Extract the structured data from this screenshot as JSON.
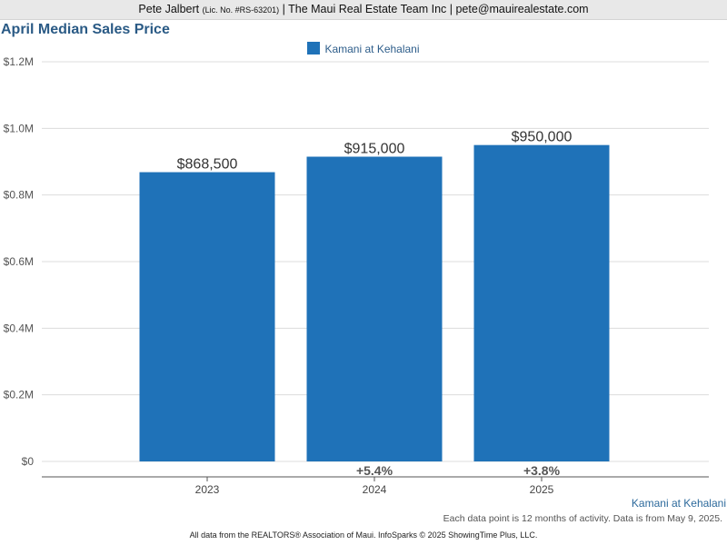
{
  "header": {
    "agent_name": "Pete Jalbert",
    "license": "(Lic. No. #RS-63201)",
    "rest": "| The Maui Real Estate Team Inc | pete@mauirealestate.com"
  },
  "chart_data": {
    "type": "bar",
    "title": "April Median Sales Price",
    "categories": [
      "2023",
      "2024",
      "2025"
    ],
    "series": [
      {
        "name": "Kamani at Kehalani",
        "color": "#1f72b8",
        "values": [
          868500,
          915000,
          950000
        ],
        "value_labels": [
          "$868,500",
          "$915,000",
          "$950,000"
        ]
      }
    ],
    "changes": [
      "",
      "+5.4%",
      "+3.8%"
    ],
    "ylim": [
      0,
      1200000
    ],
    "y_ticks": [
      0,
      200000,
      400000,
      600000,
      800000,
      1000000,
      1200000
    ],
    "y_tick_labels": [
      "$0",
      "$0.2M",
      "$0.4M",
      "$0.6M",
      "$0.8M",
      "$1.0M",
      "$1.2M"
    ],
    "xlabel": "",
    "ylabel": "",
    "grid": true,
    "legend_position": "top-center"
  },
  "footer": {
    "series_label": "Kamani at Kehalani",
    "note": "Each data point is 12 months of activity. Data is from May 9, 2025.",
    "source": "All data from the REALTORS® Association of Maui. InfoSparks © 2025 ShowingTime Plus, LLC."
  }
}
